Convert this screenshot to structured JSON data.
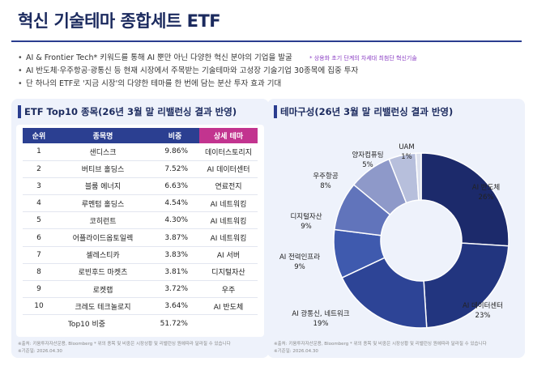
{
  "page": {
    "title": "혁신 기술테마 종합세트 ETF",
    "bullets": [
      "AI & Frontier Tech* 키워드를 통해 AI 뿐만 아닌 다양한 혁신 분야의 기업을 발굴",
      "AI 반도체·우주항공·광통신 등 현재 시장에서 주목받는 기술테마와 고성장 기술기업 30종목에 집중 투자",
      "단 하나의 ETF로 '지금 시장'의 다양한 테마를 한 번에 담는 분산 투자 효과 기대"
    ],
    "bullet_note": "* 상용화 초기 단계의 차세대 최첨단 혁신기술"
  },
  "table_panel": {
    "title": "ETF Top10 종목(26년 3월 말 리밸런싱 결과 반영)",
    "columns": [
      "순위",
      "종목명",
      "비중",
      "상세 테마"
    ],
    "total_label": "Top10 비중",
    "total_value": "51.72%",
    "source": "※출처: 키움투자자산운용, Bloomberg * 위의 종목 및 비중은 시장상황 및 리밸런싱 원에따라 달라질 수 있습니다",
    "base_date": "※기준일: 2026.04.30"
  },
  "chart_panel": {
    "title": "테마구성(26년 3월 말 리밸런싱 결과 반영)",
    "source": "※출처: 키움투자자산운용, Bloomberg * 위의 종목 및 비중은 시장상황 및 리밸런싱 원에따라 달라질 수 있습니다",
    "base_date": "※기준일: 2026.04.30"
  },
  "chart_data": [
    {
      "type": "table",
      "title": "ETF Top10 종목(26년 3월 말 리밸런싱 결과 반영)",
      "columns": [
        "순위",
        "종목명",
        "비중",
        "상세 테마"
      ],
      "rows": [
        [
          "1",
          "샌디스크",
          "9.86%",
          "데이터스토리지"
        ],
        [
          "2",
          "버티브 홀딩스",
          "7.52%",
          "AI 데이터센터"
        ],
        [
          "3",
          "블룸 에너지",
          "6.63%",
          "연료전지"
        ],
        [
          "4",
          "루멘텀 홀딩스",
          "4.54%",
          "AI 네트워킹"
        ],
        [
          "5",
          "코히런트",
          "4.30%",
          "AI 네트워킹"
        ],
        [
          "6",
          "어플라이드옵토일렉",
          "3.87%",
          "AI 네트워킹"
        ],
        [
          "7",
          "셀레스티카",
          "3.83%",
          "AI 서버"
        ],
        [
          "8",
          "로빈후드 마켓츠",
          "3.81%",
          "디지털자산"
        ],
        [
          "9",
          "로켓랩",
          "3.72%",
          "우주"
        ],
        [
          "10",
          "크레도 테크놀로지",
          "3.64%",
          "AI 반도체"
        ]
      ]
    },
    {
      "type": "pie",
      "title": "테마구성(26년 3월 말 리밸런싱 결과 반영)",
      "categories": [
        "AI 반도체",
        "AI 데이터센터",
        "AI 광통신, 네트워크",
        "AI 전력인프라",
        "디지털자산",
        "우주항공",
        "양자컴퓨팅",
        "UAM"
      ],
      "values": [
        26,
        23,
        19,
        9,
        9,
        8,
        5,
        1
      ],
      "value_labels": [
        "26%",
        "23%",
        "19%",
        "9%",
        "9%",
        "8%",
        "5%",
        "1%"
      ],
      "colors": [
        "#1c2a6b",
        "#22357f",
        "#2d4496",
        "#3f5aae",
        "#6174bb",
        "#8e99c9",
        "#b7bfdc",
        "#dde1ee"
      ],
      "donut": true
    }
  ]
}
